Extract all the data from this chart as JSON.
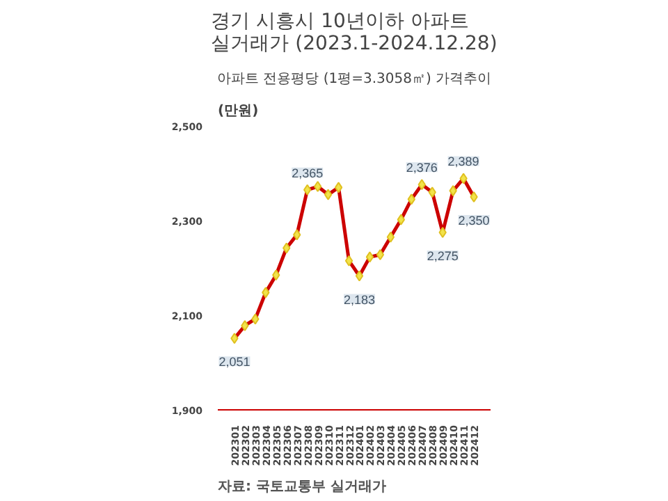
{
  "chart_data": {
    "type": "line",
    "title": "경기 시흥시 10년이하 아파트\n실거래가 (2023.1-2024.12.28)",
    "subtitle": "아파트 전용평당 (1평=3.3058㎡) 가격추이",
    "ylabel": "(만원)",
    "categories": [
      "202301",
      "202302",
      "202303",
      "202304",
      "202305",
      "202306",
      "202307",
      "202308",
      "202309",
      "202310",
      "202311",
      "202312",
      "202401",
      "202402",
      "202403",
      "202404",
      "202405",
      "202406",
      "202407",
      "202408",
      "202409",
      "202410",
      "202411",
      "202412"
    ],
    "series": [
      {
        "color": "#cc0000",
        "values": [
          2051,
          2078,
          2092,
          2148,
          2185,
          2242,
          2270,
          2365,
          2372,
          2355,
          2370,
          2215,
          2183,
          2223,
          2228,
          2265,
          2302,
          2345,
          2376,
          2360,
          2275,
          2363,
          2389,
          2350
        ],
        "value_labels": [
          "2,051",
          null,
          null,
          null,
          null,
          null,
          null,
          "2,365",
          null,
          null,
          null,
          null,
          "2,183",
          null,
          null,
          null,
          null,
          null,
          "2,376",
          null,
          "2,275",
          null,
          "2,389",
          "2,350"
        ]
      }
    ],
    "ylim": [
      1900,
      2500
    ],
    "yticks": [
      {
        "value": 1900,
        "label": "1,900"
      },
      {
        "value": 2100,
        "label": "2,100"
      },
      {
        "value": 2300,
        "label": "2,300"
      },
      {
        "value": 2500,
        "label": "2,500"
      }
    ],
    "grid": false,
    "marker": "diamond",
    "line_style": "solid",
    "annotations": [
      "자료: 국토교통부 실거래가"
    ]
  }
}
